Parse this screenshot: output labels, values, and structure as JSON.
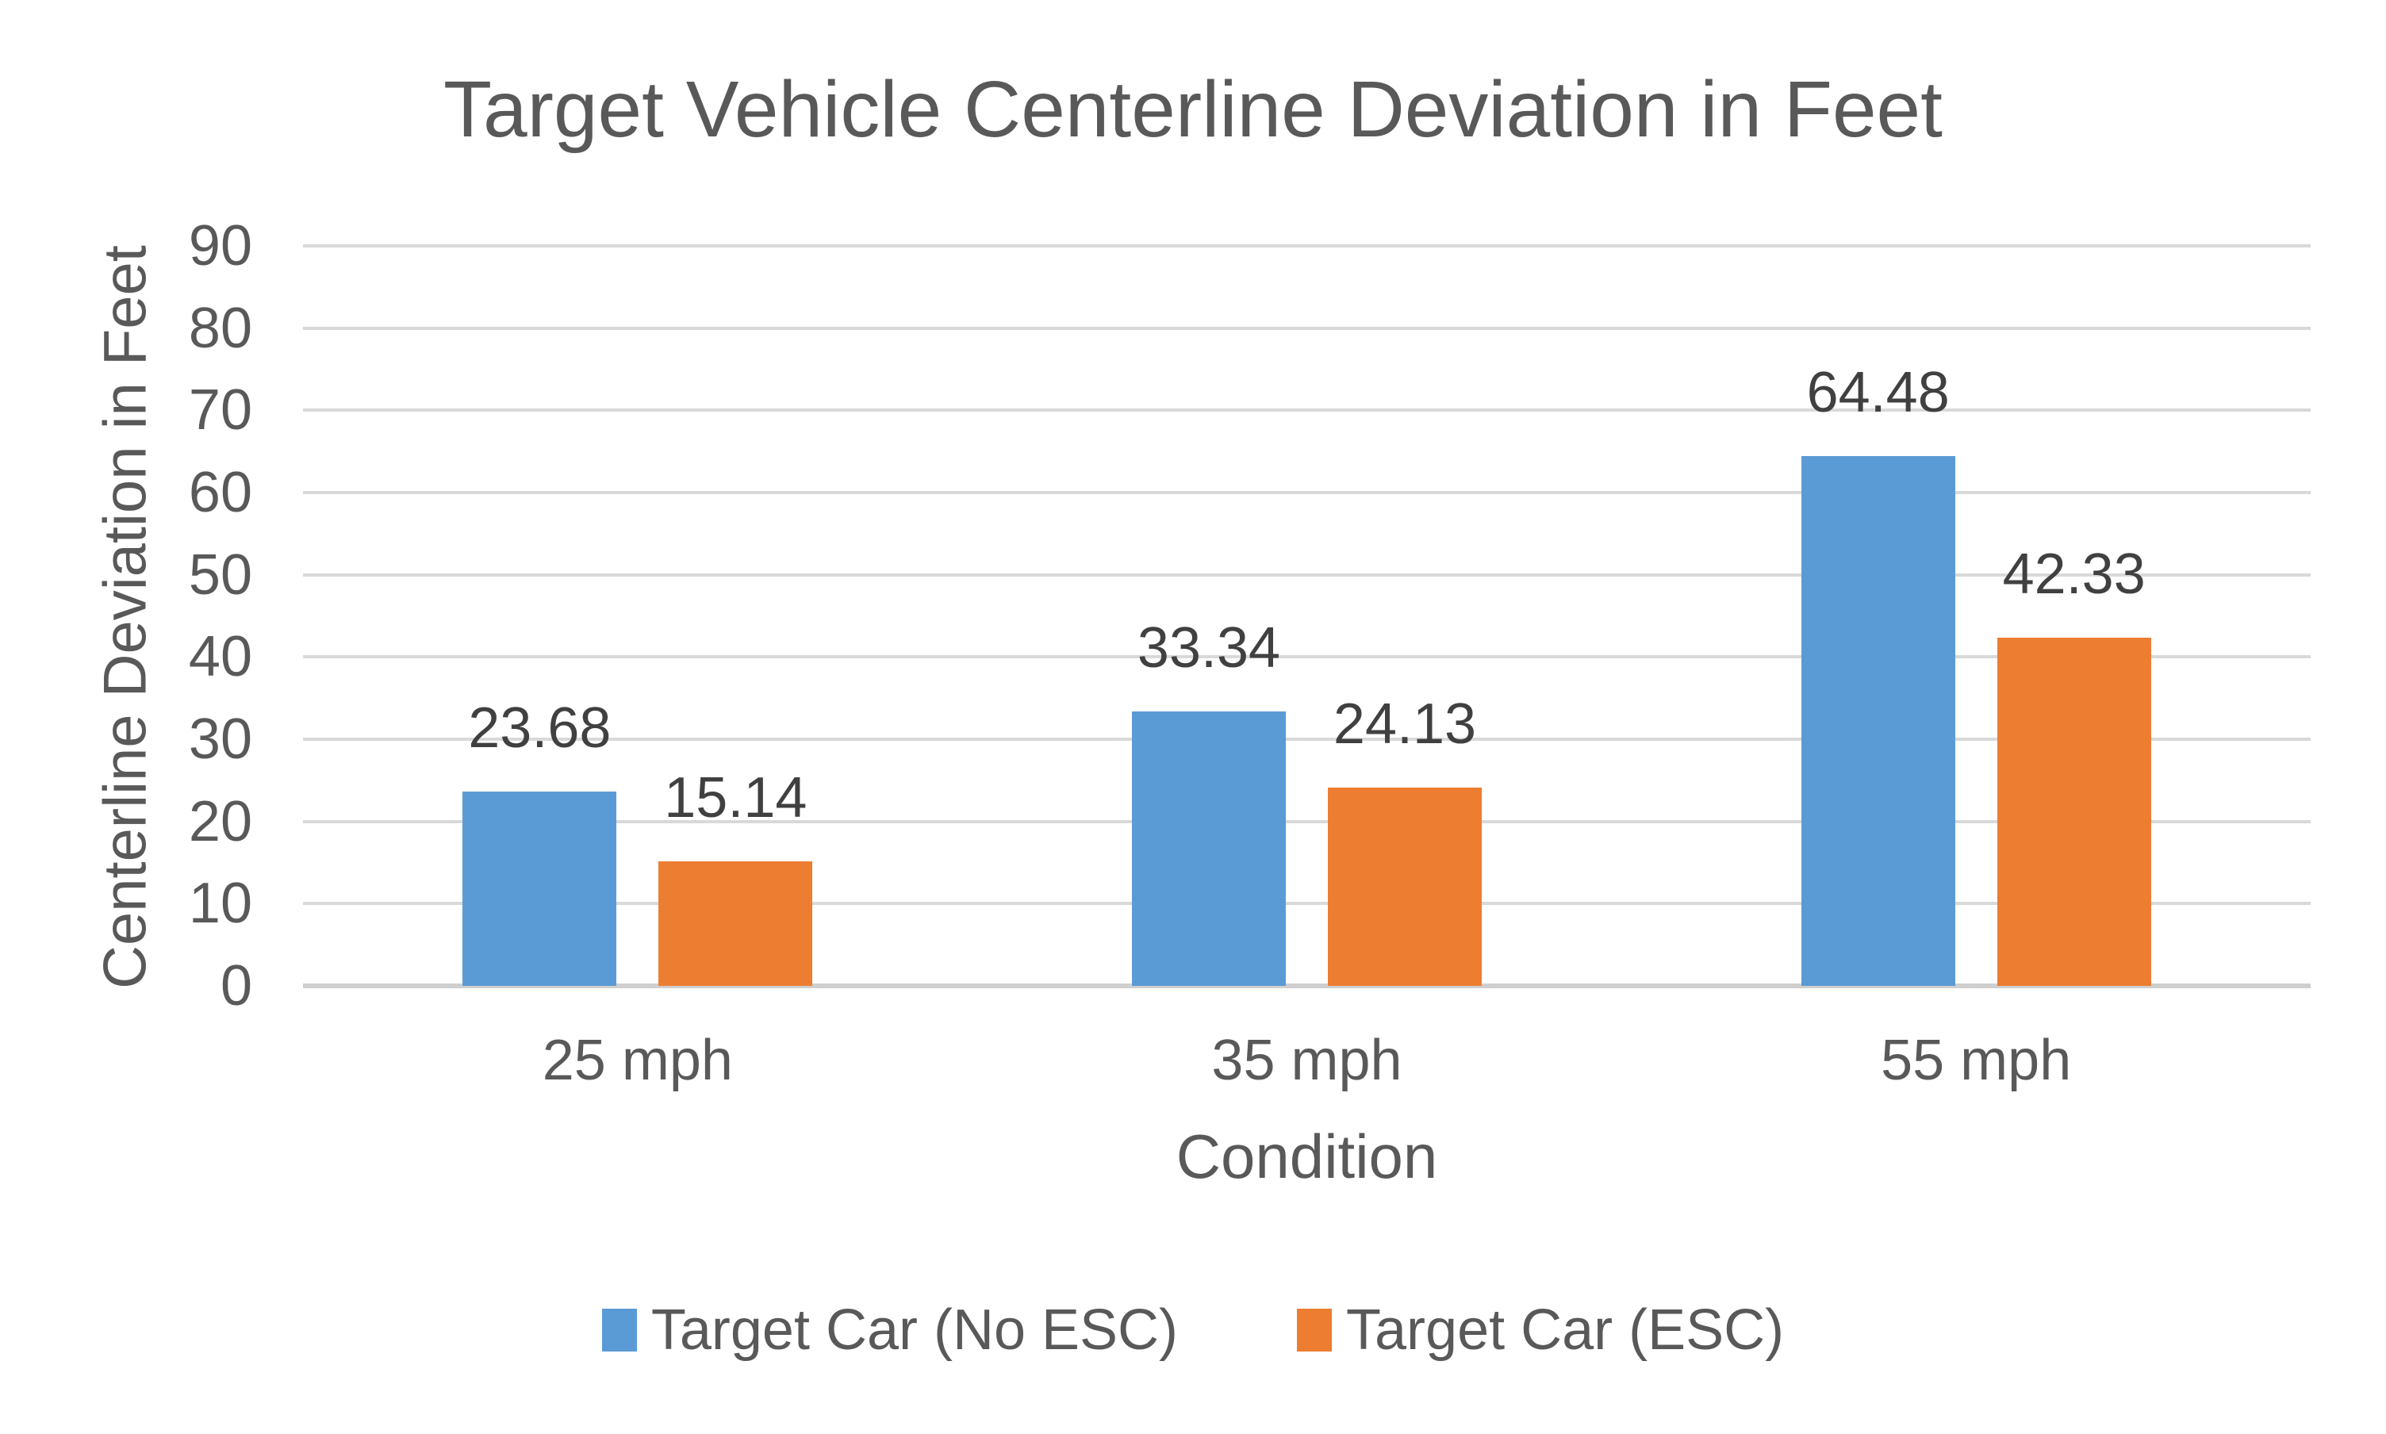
{
  "chart_data": {
    "type": "bar",
    "title": "Target Vehicle Centerline Deviation in Feet",
    "xlabel": "Condition",
    "ylabel": "Centerline Deviation in Feet",
    "categories": [
      "25 mph",
      "35 mph",
      "55 mph"
    ],
    "series": [
      {
        "name": "Target Car (No ESC)",
        "color": "#5B9BD5",
        "values": [
          23.68,
          33.34,
          64.48
        ],
        "labels": [
          "23.68",
          "33.34",
          "64.48"
        ]
      },
      {
        "name": "Target Car (ESC)",
        "color": "#ED7D31",
        "values": [
          15.14,
          24.13,
          42.33
        ],
        "labels": [
          "15.14",
          "24.13",
          "42.33"
        ]
      }
    ],
    "ylim": [
      0,
      90
    ],
    "ytick_step": 10,
    "yticks": [
      0,
      10,
      20,
      30,
      40,
      50,
      60,
      70,
      80,
      90
    ],
    "grid": "horizontal",
    "legend_position": "bottom",
    "data_labels": "outside-end"
  },
  "colors": {
    "background": "#FFFFFF",
    "title_text": "#595959",
    "axis_text": "#595959",
    "data_label_text": "#404040",
    "gridline": "#D9D9D9",
    "axis_line": "#CFCFCF",
    "series_blue": "#5B9BD5",
    "series_orange": "#ED7D31"
  }
}
